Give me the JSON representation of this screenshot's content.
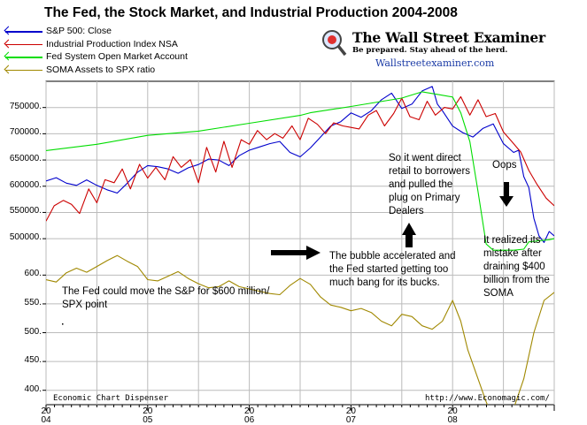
{
  "chart_data": {
    "type": "line",
    "title": "The Fed, the Stock Market, and Industrial Production 2004-2008",
    "colors": {
      "sp500": "#0000cc",
      "ip": "#cc0000",
      "soma": "#00dd00",
      "ratio": "#a08800",
      "grid": "#bbbbbb"
    },
    "series": [
      {
        "name": "S&P 500: Close",
        "key": "sp500",
        "color": "#0000cc",
        "points": [
          [
            2004.0,
            1130
          ],
          [
            2004.1,
            1145
          ],
          [
            2004.2,
            1120
          ],
          [
            2004.3,
            1110
          ],
          [
            2004.4,
            1135
          ],
          [
            2004.5,
            1110
          ],
          [
            2004.6,
            1090
          ],
          [
            2004.7,
            1075
          ],
          [
            2004.8,
            1120
          ],
          [
            2004.9,
            1170
          ],
          [
            2005.0,
            1200
          ],
          [
            2005.1,
            1195
          ],
          [
            2005.2,
            1185
          ],
          [
            2005.3,
            1165
          ],
          [
            2005.4,
            1190
          ],
          [
            2005.5,
            1205
          ],
          [
            2005.6,
            1230
          ],
          [
            2005.7,
            1225
          ],
          [
            2005.8,
            1200
          ],
          [
            2005.9,
            1245
          ],
          [
            2006.0,
            1270
          ],
          [
            2006.1,
            1285
          ],
          [
            2006.2,
            1300
          ],
          [
            2006.3,
            1310
          ],
          [
            2006.4,
            1260
          ],
          [
            2006.5,
            1240
          ],
          [
            2006.6,
            1280
          ],
          [
            2006.7,
            1330
          ],
          [
            2006.8,
            1380
          ],
          [
            2006.9,
            1400
          ],
          [
            2007.0,
            1440
          ],
          [
            2007.1,
            1420
          ],
          [
            2007.2,
            1450
          ],
          [
            2007.3,
            1500
          ],
          [
            2007.4,
            1530
          ],
          [
            2007.5,
            1460
          ],
          [
            2007.6,
            1480
          ],
          [
            2007.7,
            1540
          ],
          [
            2007.8,
            1560
          ],
          [
            2007.85,
            1480
          ],
          [
            2007.9,
            1450
          ],
          [
            2008.0,
            1380
          ],
          [
            2008.1,
            1350
          ],
          [
            2008.2,
            1330
          ],
          [
            2008.3,
            1370
          ],
          [
            2008.4,
            1390
          ],
          [
            2008.5,
            1300
          ],
          [
            2008.6,
            1260
          ],
          [
            2008.65,
            1270
          ],
          [
            2008.7,
            1150
          ],
          [
            2008.75,
            1100
          ],
          [
            2008.8,
            960
          ],
          [
            2008.85,
            880
          ],
          [
            2008.9,
            850
          ],
          [
            2008.95,
            900
          ],
          [
            2009.0,
            880
          ]
        ]
      },
      {
        "name": "Industrial Production Index NSA",
        "key": "ip",
        "color": "#cc0000",
        "points": [
          [
            2004.0,
            97.8
          ],
          [
            2004.08,
            99.8
          ],
          [
            2004.17,
            100.5
          ],
          [
            2004.25,
            100.0
          ],
          [
            2004.33,
            98.8
          ],
          [
            2004.42,
            102.0
          ],
          [
            2004.5,
            100.2
          ],
          [
            2004.58,
            103.2
          ],
          [
            2004.67,
            102.8
          ],
          [
            2004.75,
            104.6
          ],
          [
            2004.83,
            102.0
          ],
          [
            2004.92,
            105.2
          ],
          [
            2005.0,
            103.4
          ],
          [
            2005.08,
            104.8
          ],
          [
            2005.17,
            103.2
          ],
          [
            2005.25,
            106.2
          ],
          [
            2005.33,
            104.8
          ],
          [
            2005.42,
            105.8
          ],
          [
            2005.5,
            102.8
          ],
          [
            2005.58,
            107.4
          ],
          [
            2005.67,
            104.2
          ],
          [
            2005.75,
            108.2
          ],
          [
            2005.83,
            104.8
          ],
          [
            2005.92,
            108.4
          ],
          [
            2006.0,
            107.8
          ],
          [
            2006.08,
            109.6
          ],
          [
            2006.17,
            108.4
          ],
          [
            2006.25,
            109.2
          ],
          [
            2006.33,
            108.6
          ],
          [
            2006.42,
            110.2
          ],
          [
            2006.5,
            108.4
          ],
          [
            2006.58,
            111.2
          ],
          [
            2006.67,
            110.4
          ],
          [
            2006.75,
            109.2
          ],
          [
            2006.83,
            110.6
          ],
          [
            2006.92,
            110.2
          ],
          [
            2007.0,
            110.0
          ],
          [
            2007.08,
            109.8
          ],
          [
            2007.17,
            111.6
          ],
          [
            2007.25,
            112.2
          ],
          [
            2007.33,
            110.2
          ],
          [
            2007.42,
            111.8
          ],
          [
            2007.5,
            113.8
          ],
          [
            2007.58,
            111.4
          ],
          [
            2007.67,
            111.0
          ],
          [
            2007.75,
            113.4
          ],
          [
            2007.83,
            111.6
          ],
          [
            2007.92,
            112.6
          ],
          [
            2008.0,
            112.4
          ],
          [
            2008.08,
            114.0
          ],
          [
            2008.17,
            111.6
          ],
          [
            2008.25,
            113.6
          ],
          [
            2008.33,
            111.4
          ],
          [
            2008.42,
            111.8
          ],
          [
            2008.5,
            109.4
          ],
          [
            2008.58,
            108.2
          ],
          [
            2008.67,
            106.8
          ],
          [
            2008.75,
            104.4
          ],
          [
            2008.83,
            102.6
          ],
          [
            2008.92,
            100.8
          ],
          [
            2009.0,
            99.8
          ]
        ]
      },
      {
        "name": "Fed System Open Market Account",
        "key": "soma",
        "color": "#00dd00",
        "points": [
          [
            2004.0,
            668
          ],
          [
            2004.5,
            680
          ],
          [
            2005.0,
            697
          ],
          [
            2005.5,
            705
          ],
          [
            2006.0,
            720
          ],
          [
            2006.5,
            735
          ],
          [
            2006.6,
            740
          ],
          [
            2007.0,
            752
          ],
          [
            2007.5,
            768
          ],
          [
            2007.7,
            780
          ],
          [
            2007.85,
            775
          ],
          [
            2008.0,
            770
          ],
          [
            2008.08,
            740
          ],
          [
            2008.17,
            685
          ],
          [
            2008.25,
            590
          ],
          [
            2008.33,
            490
          ],
          [
            2008.4,
            478
          ],
          [
            2008.6,
            478
          ],
          [
            2008.7,
            480
          ],
          [
            2008.75,
            494
          ],
          [
            2008.85,
            496
          ],
          [
            2008.95,
            498
          ],
          [
            2009.0,
            500
          ]
        ]
      },
      {
        "name": "SOMA Assets to SPX ratio",
        "key": "ratio",
        "color": "#a08800",
        "points": [
          [
            2004.0,
            592
          ],
          [
            2004.1,
            588
          ],
          [
            2004.2,
            604
          ],
          [
            2004.3,
            612
          ],
          [
            2004.4,
            605
          ],
          [
            2004.5,
            615
          ],
          [
            2004.6,
            625
          ],
          [
            2004.7,
            634
          ],
          [
            2004.8,
            624
          ],
          [
            2004.9,
            615
          ],
          [
            2005.0,
            592
          ],
          [
            2005.1,
            590
          ],
          [
            2005.2,
            598
          ],
          [
            2005.3,
            606
          ],
          [
            2005.4,
            594
          ],
          [
            2005.5,
            585
          ],
          [
            2005.6,
            578
          ],
          [
            2005.7,
            580
          ],
          [
            2005.8,
            590
          ],
          [
            2005.9,
            580
          ],
          [
            2006.0,
            576
          ],
          [
            2006.1,
            572
          ],
          [
            2006.2,
            568
          ],
          [
            2006.3,
            566
          ],
          [
            2006.4,
            582
          ],
          [
            2006.5,
            594
          ],
          [
            2006.6,
            584
          ],
          [
            2006.7,
            562
          ],
          [
            2006.8,
            548
          ],
          [
            2006.9,
            544
          ],
          [
            2007.0,
            538
          ],
          [
            2007.1,
            542
          ],
          [
            2007.2,
            535
          ],
          [
            2007.3,
            520
          ],
          [
            2007.4,
            512
          ],
          [
            2007.5,
            532
          ],
          [
            2007.6,
            528
          ],
          [
            2007.7,
            512
          ],
          [
            2007.8,
            506
          ],
          [
            2007.9,
            520
          ],
          [
            2008.0,
            556
          ],
          [
            2008.08,
            520
          ],
          [
            2008.15,
            470
          ],
          [
            2008.25,
            420
          ],
          [
            2008.33,
            380
          ],
          [
            2008.4,
            350
          ],
          [
            2008.5,
            355
          ],
          [
            2008.6,
            368
          ],
          [
            2008.7,
            420
          ],
          [
            2008.8,
            500
          ],
          [
            2008.9,
            556
          ],
          [
            2009.0,
            570
          ]
        ]
      }
    ],
    "y_left_upper_ticks": [
      "500000.",
      "550000.",
      "600000.",
      "650000.",
      "700000.",
      "750000."
    ],
    "y_left_lower_ticks": [
      "400.",
      "450.",
      "500.",
      "550.",
      "600."
    ],
    "x_ticks": [
      {
        "top": "20",
        "bottom": "04"
      },
      {
        "top": "20",
        "bottom": "05"
      },
      {
        "top": "20",
        "bottom": "06"
      },
      {
        "top": "20",
        "bottom": "07"
      },
      {
        "top": "20",
        "bottom": "08"
      }
    ],
    "xlim": [
      2004,
      2009
    ],
    "upper_ylim": [
      480000,
      800000
    ],
    "lower_ylim": [
      375,
      645
    ],
    "sp500_ylim": [
      900,
      1600
    ],
    "ip_ylim": [
      96,
      116
    ],
    "grid": true,
    "legend_position": "top-left"
  },
  "logo": {
    "name": "The Wall Street Examiner",
    "tagline": "Be prepared. Stay ahead of the herd.",
    "url": "Wallstreetexaminer.com",
    "icon": "magnifier-icon"
  },
  "footer": {
    "left": "Economic Chart Dispenser",
    "right": "http://www.Economagic.com/"
  },
  "annotations": {
    "fed_move": [
      "The Fed could move the S&P for $600 million/",
      "SPX point"
    ],
    "bubble": [
      "The bubble accelerated and",
      "the Fed started getting too",
      "much bang for its bucks."
    ],
    "direct": [
      "So it went direct",
      "retail to borrowers",
      "and pulled the",
      "plug on Primary",
      "Dealers"
    ],
    "oops": "Oops",
    "realized": [
      "It realized its",
      "mistake after",
      "draining $400",
      "billion from the",
      "SOMA"
    ]
  }
}
